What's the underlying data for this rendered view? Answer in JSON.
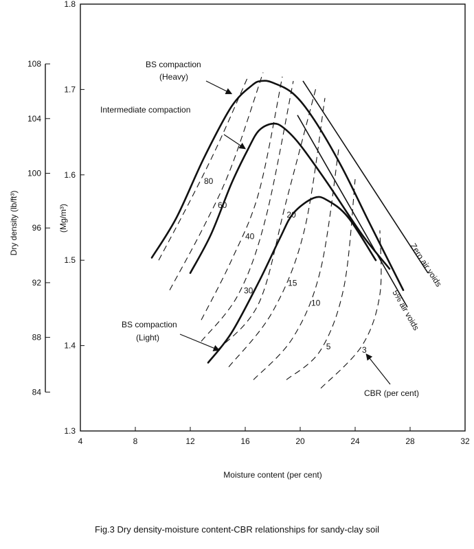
{
  "caption": "Fig.3 Dry density-moisture content-CBR relationships for sandy-clay soil",
  "chart_data": {
    "type": "line",
    "xlabel": "Moisture content (per cent)",
    "ylabel_left": "Dry density  (lb/ft³)",
    "ylabel_inner": "(Mg/m³)",
    "xlim": [
      4,
      32
    ],
    "ylim_mg": [
      1.3,
      1.8
    ],
    "x_ticks": [
      "4",
      "8",
      "12",
      "16",
      "20",
      "24",
      "28",
      "32"
    ],
    "y_ticks_mg": [
      "1.3",
      "1.4",
      "1.5",
      "1.6",
      "1.7",
      "1.8"
    ],
    "y_ticks_lb": [
      "84",
      "88",
      "92",
      "96",
      "100",
      "104",
      "108"
    ],
    "compaction_curves": [
      {
        "name": "BS compaction (Heavy)",
        "x": [
          9.2,
          11,
          13,
          15,
          16.5,
          17.2,
          18,
          19.5,
          21,
          23,
          25,
          27.5
        ],
        "y": [
          1.503,
          1.55,
          1.62,
          1.68,
          1.705,
          1.71,
          1.708,
          1.695,
          1.665,
          1.61,
          1.545,
          1.465
        ]
      },
      {
        "name": "Intermediate compaction",
        "x": [
          12,
          13.5,
          15,
          16.2,
          17,
          18,
          18.8,
          20,
          22,
          24.5,
          26.5
        ],
        "y": [
          1.485,
          1.53,
          1.59,
          1.63,
          1.652,
          1.66,
          1.655,
          1.635,
          1.59,
          1.53,
          1.49
        ]
      },
      {
        "name": "BS compaction (Light)",
        "x": [
          13.3,
          15,
          17,
          18.5,
          19.5,
          21,
          22,
          23.5,
          25.5
        ],
        "y": [
          1.38,
          1.415,
          1.475,
          1.525,
          1.555,
          1.573,
          1.57,
          1.55,
          1.5
        ]
      }
    ],
    "air_void_lines": [
      {
        "name": "Zero air voids",
        "label": "Zero air voids",
        "x": [
          20.2,
          29.3
        ],
        "y": [
          1.71,
          1.485
        ]
      },
      {
        "name": "5% air voids",
        "label": "5% air voids",
        "x": [
          19.8,
          27.8
        ],
        "y": [
          1.67,
          1.445
        ]
      }
    ],
    "cbr_contours": [
      {
        "label": "80",
        "x": [
          9.7,
          12,
          14,
          16.2
        ],
        "y": [
          1.5,
          1.57,
          1.635,
          1.715
        ]
      },
      {
        "label": "60",
        "x": [
          10.5,
          13,
          15,
          17.3
        ],
        "y": [
          1.465,
          1.54,
          1.61,
          1.72
        ]
      },
      {
        "label": "40",
        "x": [
          12.8,
          15,
          17,
          18.7
        ],
        "y": [
          1.43,
          1.5,
          1.58,
          1.715
        ]
      },
      {
        "label": "30",
        "x": [
          12.8,
          15.5,
          17.5,
          19.5
        ],
        "y": [
          1.405,
          1.46,
          1.55,
          1.71
        ]
      },
      {
        "label": "20",
        "x": [
          14,
          17,
          19,
          21.2
        ],
        "y": [
          1.395,
          1.45,
          1.57,
          1.705
        ]
      },
      {
        "label": "15",
        "x": [
          14.8,
          18,
          20.3,
          21.8
        ],
        "y": [
          1.375,
          1.44,
          1.535,
          1.69
        ]
      },
      {
        "label": "10",
        "x": [
          16.6,
          19.5,
          21.5,
          22.8
        ],
        "y": [
          1.36,
          1.41,
          1.49,
          1.63
        ]
      },
      {
        "label": "5",
        "x": [
          19,
          21.5,
          23.2,
          24
        ],
        "y": [
          1.36,
          1.395,
          1.47,
          1.595
        ]
      },
      {
        "label": "3",
        "x": [
          21.5,
          24.5,
          25.8,
          25.8
        ],
        "y": [
          1.35,
          1.4,
          1.46,
          1.535
        ]
      }
    ],
    "annotations": {
      "heavy": [
        "BS compaction",
        "(Heavy)"
      ],
      "intermediate": "Intermediate compaction",
      "light": [
        "BS compaction",
        "(Light)"
      ],
      "cbr": "CBR (per cent)"
    }
  }
}
